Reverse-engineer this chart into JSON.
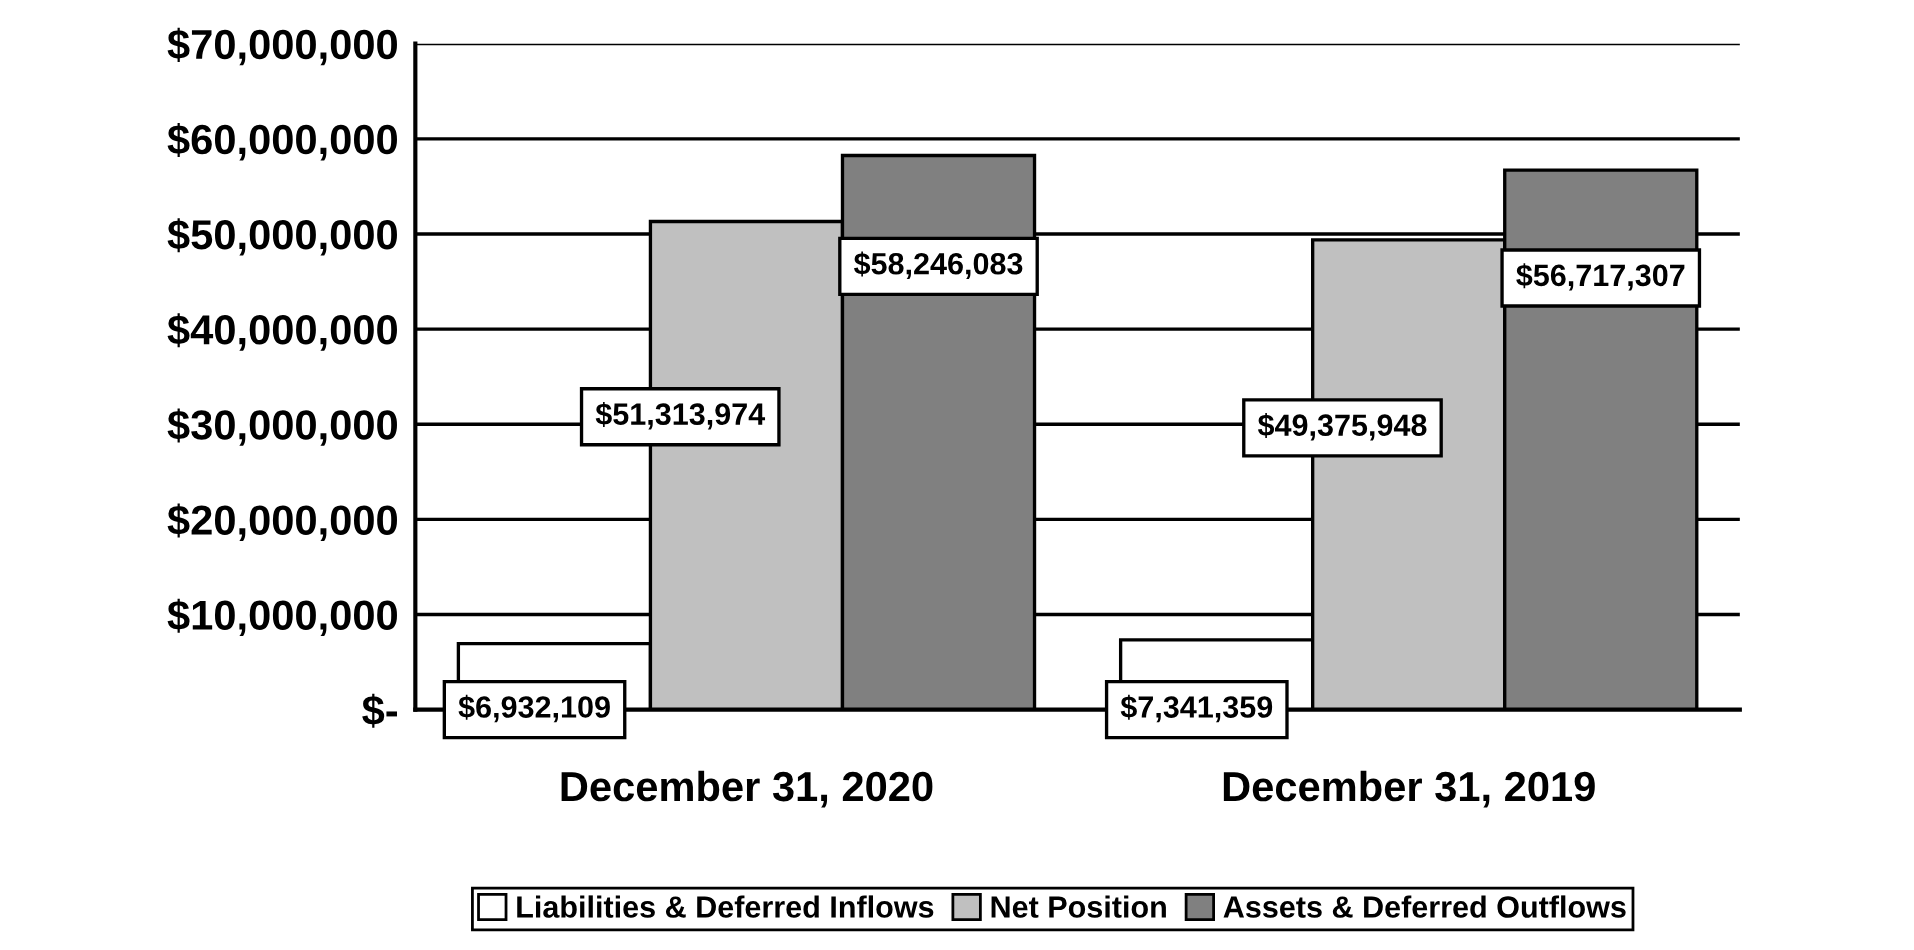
{
  "chart_data": {
    "type": "bar",
    "categories": [
      "December 31, 2020",
      "December 31, 2019"
    ],
    "series": [
      {
        "name": "Liabilities & Deferred Inflows",
        "color": "#ffffff",
        "values": [
          6932109,
          7341359
        ],
        "value_labels": [
          "$6,932,109",
          "$7,341,359"
        ]
      },
      {
        "name": "Net Position",
        "color": "#c0c0c0",
        "values": [
          51313974,
          49375948
        ],
        "value_labels": [
          "$51,313,974",
          "$49,375,948"
        ]
      },
      {
        "name": "Assets & Deferred Outflows",
        "color": "#808080",
        "values": [
          58246083,
          56717307
        ],
        "value_labels": [
          "$58,246,083",
          "$56,717,307"
        ]
      }
    ],
    "ylim": [
      0,
      70000000
    ],
    "yticks": [
      {
        "value": 0,
        "label": "$-"
      },
      {
        "value": 10000000,
        "label": "$10,000,000"
      },
      {
        "value": 20000000,
        "label": "$20,000,000"
      },
      {
        "value": 30000000,
        "label": "$30,000,000"
      },
      {
        "value": 40000000,
        "label": "$40,000,000"
      },
      {
        "value": 50000000,
        "label": "$50,000,000"
      },
      {
        "value": 60000000,
        "label": "$60,000,000"
      },
      {
        "value": 70000000,
        "label": "$70,000,000"
      }
    ],
    "grid": "y",
    "legend": "bottom"
  }
}
